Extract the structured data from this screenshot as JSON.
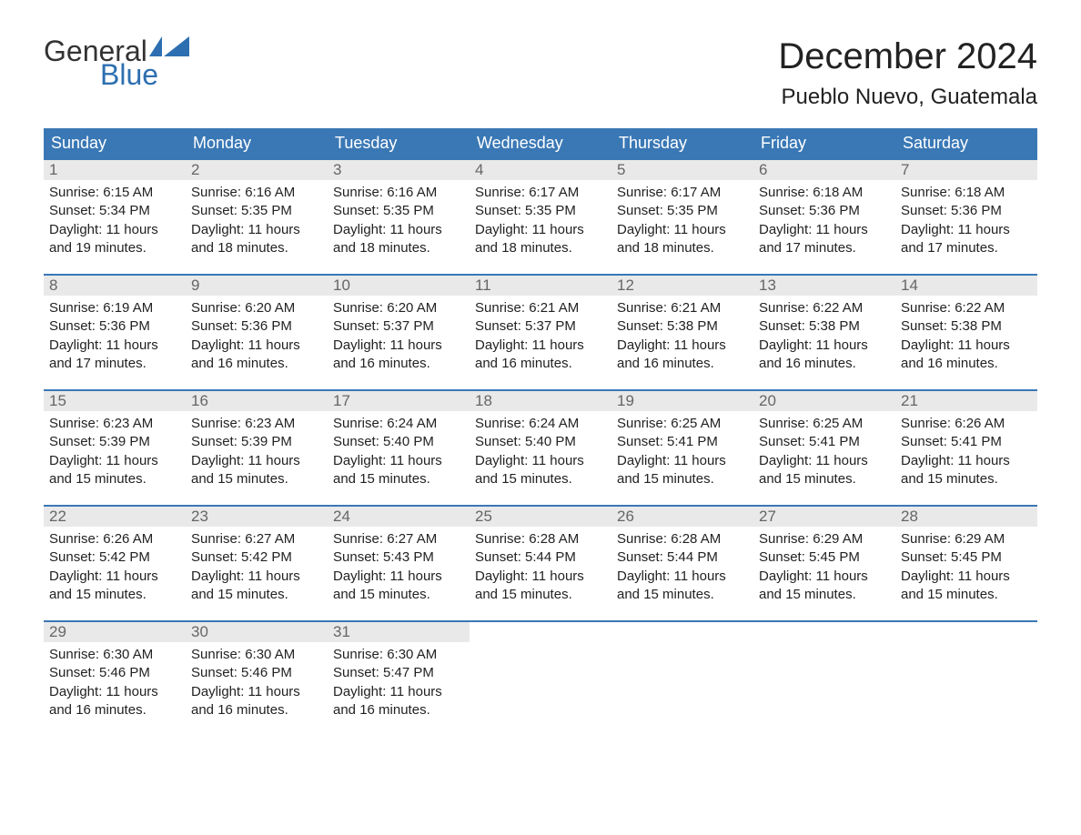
{
  "brand": {
    "text_general": "General",
    "text_blue": "Blue",
    "logo_accent_color": "#2d6fb0"
  },
  "header": {
    "month_title": "December 2024",
    "location": "Pueblo Nuevo, Guatemala"
  },
  "calendar": {
    "header_bg": "#3a78b5",
    "header_text_color": "#ffffff",
    "week_border_color": "#3a78b5",
    "daynum_bg": "#e9e9e9",
    "daynum_color": "#666666",
    "body_text_color": "#222222",
    "background_color": "#ffffff",
    "weekdays": [
      "Sunday",
      "Monday",
      "Tuesday",
      "Wednesday",
      "Thursday",
      "Friday",
      "Saturday"
    ],
    "weeks": [
      [
        {
          "n": "1",
          "sunrise": "Sunrise: 6:15 AM",
          "sunset": "Sunset: 5:34 PM",
          "daylight": "Daylight: 11 hours and 19 minutes."
        },
        {
          "n": "2",
          "sunrise": "Sunrise: 6:16 AM",
          "sunset": "Sunset: 5:35 PM",
          "daylight": "Daylight: 11 hours and 18 minutes."
        },
        {
          "n": "3",
          "sunrise": "Sunrise: 6:16 AM",
          "sunset": "Sunset: 5:35 PM",
          "daylight": "Daylight: 11 hours and 18 minutes."
        },
        {
          "n": "4",
          "sunrise": "Sunrise: 6:17 AM",
          "sunset": "Sunset: 5:35 PM",
          "daylight": "Daylight: 11 hours and 18 minutes."
        },
        {
          "n": "5",
          "sunrise": "Sunrise: 6:17 AM",
          "sunset": "Sunset: 5:35 PM",
          "daylight": "Daylight: 11 hours and 18 minutes."
        },
        {
          "n": "6",
          "sunrise": "Sunrise: 6:18 AM",
          "sunset": "Sunset: 5:36 PM",
          "daylight": "Daylight: 11 hours and 17 minutes."
        },
        {
          "n": "7",
          "sunrise": "Sunrise: 6:18 AM",
          "sunset": "Sunset: 5:36 PM",
          "daylight": "Daylight: 11 hours and 17 minutes."
        }
      ],
      [
        {
          "n": "8",
          "sunrise": "Sunrise: 6:19 AM",
          "sunset": "Sunset: 5:36 PM",
          "daylight": "Daylight: 11 hours and 17 minutes."
        },
        {
          "n": "9",
          "sunrise": "Sunrise: 6:20 AM",
          "sunset": "Sunset: 5:36 PM",
          "daylight": "Daylight: 11 hours and 16 minutes."
        },
        {
          "n": "10",
          "sunrise": "Sunrise: 6:20 AM",
          "sunset": "Sunset: 5:37 PM",
          "daylight": "Daylight: 11 hours and 16 minutes."
        },
        {
          "n": "11",
          "sunrise": "Sunrise: 6:21 AM",
          "sunset": "Sunset: 5:37 PM",
          "daylight": "Daylight: 11 hours and 16 minutes."
        },
        {
          "n": "12",
          "sunrise": "Sunrise: 6:21 AM",
          "sunset": "Sunset: 5:38 PM",
          "daylight": "Daylight: 11 hours and 16 minutes."
        },
        {
          "n": "13",
          "sunrise": "Sunrise: 6:22 AM",
          "sunset": "Sunset: 5:38 PM",
          "daylight": "Daylight: 11 hours and 16 minutes."
        },
        {
          "n": "14",
          "sunrise": "Sunrise: 6:22 AM",
          "sunset": "Sunset: 5:38 PM",
          "daylight": "Daylight: 11 hours and 16 minutes."
        }
      ],
      [
        {
          "n": "15",
          "sunrise": "Sunrise: 6:23 AM",
          "sunset": "Sunset: 5:39 PM",
          "daylight": "Daylight: 11 hours and 15 minutes."
        },
        {
          "n": "16",
          "sunrise": "Sunrise: 6:23 AM",
          "sunset": "Sunset: 5:39 PM",
          "daylight": "Daylight: 11 hours and 15 minutes."
        },
        {
          "n": "17",
          "sunrise": "Sunrise: 6:24 AM",
          "sunset": "Sunset: 5:40 PM",
          "daylight": "Daylight: 11 hours and 15 minutes."
        },
        {
          "n": "18",
          "sunrise": "Sunrise: 6:24 AM",
          "sunset": "Sunset: 5:40 PM",
          "daylight": "Daylight: 11 hours and 15 minutes."
        },
        {
          "n": "19",
          "sunrise": "Sunrise: 6:25 AM",
          "sunset": "Sunset: 5:41 PM",
          "daylight": "Daylight: 11 hours and 15 minutes."
        },
        {
          "n": "20",
          "sunrise": "Sunrise: 6:25 AM",
          "sunset": "Sunset: 5:41 PM",
          "daylight": "Daylight: 11 hours and 15 minutes."
        },
        {
          "n": "21",
          "sunrise": "Sunrise: 6:26 AM",
          "sunset": "Sunset: 5:41 PM",
          "daylight": "Daylight: 11 hours and 15 minutes."
        }
      ],
      [
        {
          "n": "22",
          "sunrise": "Sunrise: 6:26 AM",
          "sunset": "Sunset: 5:42 PM",
          "daylight": "Daylight: 11 hours and 15 minutes."
        },
        {
          "n": "23",
          "sunrise": "Sunrise: 6:27 AM",
          "sunset": "Sunset: 5:42 PM",
          "daylight": "Daylight: 11 hours and 15 minutes."
        },
        {
          "n": "24",
          "sunrise": "Sunrise: 6:27 AM",
          "sunset": "Sunset: 5:43 PM",
          "daylight": "Daylight: 11 hours and 15 minutes."
        },
        {
          "n": "25",
          "sunrise": "Sunrise: 6:28 AM",
          "sunset": "Sunset: 5:44 PM",
          "daylight": "Daylight: 11 hours and 15 minutes."
        },
        {
          "n": "26",
          "sunrise": "Sunrise: 6:28 AM",
          "sunset": "Sunset: 5:44 PM",
          "daylight": "Daylight: 11 hours and 15 minutes."
        },
        {
          "n": "27",
          "sunrise": "Sunrise: 6:29 AM",
          "sunset": "Sunset: 5:45 PM",
          "daylight": "Daylight: 11 hours and 15 minutes."
        },
        {
          "n": "28",
          "sunrise": "Sunrise: 6:29 AM",
          "sunset": "Sunset: 5:45 PM",
          "daylight": "Daylight: 11 hours and 15 minutes."
        }
      ],
      [
        {
          "n": "29",
          "sunrise": "Sunrise: 6:30 AM",
          "sunset": "Sunset: 5:46 PM",
          "daylight": "Daylight: 11 hours and 16 minutes."
        },
        {
          "n": "30",
          "sunrise": "Sunrise: 6:30 AM",
          "sunset": "Sunset: 5:46 PM",
          "daylight": "Daylight: 11 hours and 16 minutes."
        },
        {
          "n": "31",
          "sunrise": "Sunrise: 6:30 AM",
          "sunset": "Sunset: 5:47 PM",
          "daylight": "Daylight: 11 hours and 16 minutes."
        },
        {
          "empty": true
        },
        {
          "empty": true
        },
        {
          "empty": true
        },
        {
          "empty": true
        }
      ]
    ]
  }
}
